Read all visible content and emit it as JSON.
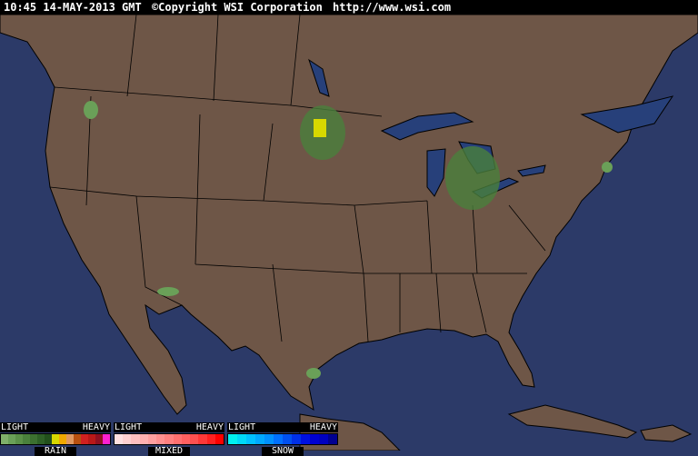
{
  "header": {
    "timestamp": "10:45 14-MAY-2013 GMT",
    "copyright": "©Copyright WSI Corporation",
    "url": "http://www.wsi.com"
  },
  "colors": {
    "ocean": "#2c3a68",
    "land": "#6e5647",
    "border": "#000000",
    "lake": "#27407a"
  },
  "legend": [
    {
      "name": "RAIN",
      "light": "LIGHT",
      "heavy": "HEAVY",
      "colors": [
        "#7fb06a",
        "#6aa058",
        "#5a9048",
        "#4a803c",
        "#3c7030",
        "#2e6026",
        "#22501c",
        "#d8d800",
        "#f0a800",
        "#e09860",
        "#b85010",
        "#d02020",
        "#b81818",
        "#901020",
        "#ff20d0"
      ]
    },
    {
      "name": "MIXED",
      "light": "LIGHT",
      "heavy": "HEAVY",
      "colors": [
        "#ffe0e0",
        "#ffd0d0",
        "#ffc0c0",
        "#ffb0b0",
        "#ffa0a0",
        "#ff9090",
        "#ff8080",
        "#ff7070",
        "#ff6060",
        "#ff5050",
        "#ff3838",
        "#ff2020",
        "#ff0000"
      ]
    },
    {
      "name": "SNOW",
      "light": "LIGHT",
      "heavy": "HEAVY",
      "colors": [
        "#00f0f0",
        "#00d8f8",
        "#00c0ff",
        "#00a8ff",
        "#0090ff",
        "#0070ff",
        "#0050f0",
        "#0030e8",
        "#0010e0",
        "#0000d0",
        "#0000c0",
        "#000090"
      ]
    }
  ]
}
